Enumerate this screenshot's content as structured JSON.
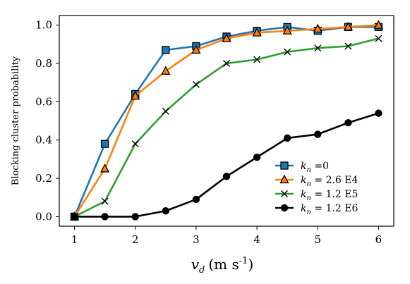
{
  "chart_data": {
    "type": "line",
    "xlabel": "v_d (m s^-1)",
    "xlabel_parts": {
      "var": "v",
      "sub": "d",
      "units_open": "(m s",
      "units_exp": "-1",
      "units_close": ")"
    },
    "ylabel": "Blocking cluster probability",
    "xlim": [
      0.75,
      6.25
    ],
    "ylim": [
      -0.05,
      1.05
    ],
    "xticks": [
      1,
      2,
      3,
      4,
      5,
      6
    ],
    "yticks": [
      0.0,
      0.2,
      0.4,
      0.6,
      0.8,
      1.0
    ],
    "ytick_labels": [
      "0.0",
      "0.2",
      "0.4",
      "0.6",
      "0.8",
      "1.0"
    ],
    "grid": false,
    "legend_position": "lower-right",
    "x": [
      1,
      1.5,
      2,
      2.5,
      3,
      3.5,
      4,
      4.5,
      5,
      5.5,
      6
    ],
    "series": [
      {
        "name": "k_n =0",
        "label_var": "k",
        "label_sub": "n",
        "label_rest": " =0",
        "color": "#1f77b4",
        "marker": "square",
        "values": [
          0.0,
          0.38,
          0.64,
          0.87,
          0.89,
          0.94,
          0.97,
          0.99,
          0.97,
          0.99,
          0.99
        ]
      },
      {
        "name": "k_n = 2.6 E4",
        "label_var": "k",
        "label_sub": "n",
        "label_rest": " = 2.6 E4",
        "color": "#ff7f0e",
        "marker": "triangle",
        "values": [
          0.0,
          0.25,
          0.63,
          0.76,
          0.87,
          0.93,
          0.96,
          0.97,
          0.98,
          0.99,
          1.0
        ]
      },
      {
        "name": "k_n = 1.2 E5",
        "label_var": "k",
        "label_sub": "n",
        "label_rest": " = 1.2 E5",
        "color": "#2ca02c",
        "marker": "x",
        "values": [
          0.0,
          0.08,
          0.38,
          0.55,
          0.69,
          0.8,
          0.82,
          0.86,
          0.88,
          0.89,
          0.93
        ]
      },
      {
        "name": "k_n = 1.2 E6",
        "label_var": "k",
        "label_sub": "n",
        "label_rest": " = 1.2 E6",
        "color": "#000000",
        "marker": "circle",
        "values": [
          0.0,
          0.0,
          0.0,
          0.03,
          0.09,
          0.21,
          0.31,
          0.41,
          0.43,
          0.49,
          0.54
        ]
      }
    ]
  }
}
